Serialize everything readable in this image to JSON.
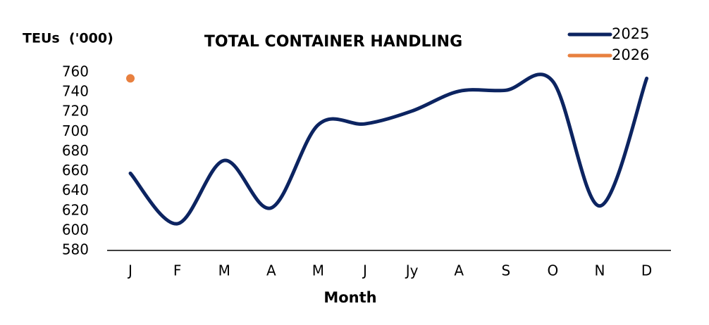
{
  "chart_data": {
    "type": "line",
    "title": "TOTAL CONTAINER HANDLING",
    "y_label": "TEUs  ('000)",
    "x_label": "Month",
    "categories": [
      "J",
      "F",
      "M",
      "A",
      "M",
      "J",
      "Jy",
      "A",
      "S",
      "O",
      "N",
      "D"
    ],
    "series": [
      {
        "name": "2025",
        "color": "#0c2461",
        "values": [
          658,
          607,
          671,
          623,
          707,
          708,
          721,
          741,
          742,
          751,
          625,
          754
        ]
      },
      {
        "name": "2026",
        "color": "#e8803f",
        "values": [
          754,
          null,
          null,
          null,
          null,
          null,
          null,
          null,
          null,
          null,
          null,
          null
        ]
      }
    ],
    "ylim": [
      580,
      760
    ],
    "yticks": [
      580,
      600,
      620,
      640,
      660,
      680,
      700,
      720,
      740,
      760
    ],
    "grid": false,
    "smooth": true,
    "legend": "top-right"
  }
}
